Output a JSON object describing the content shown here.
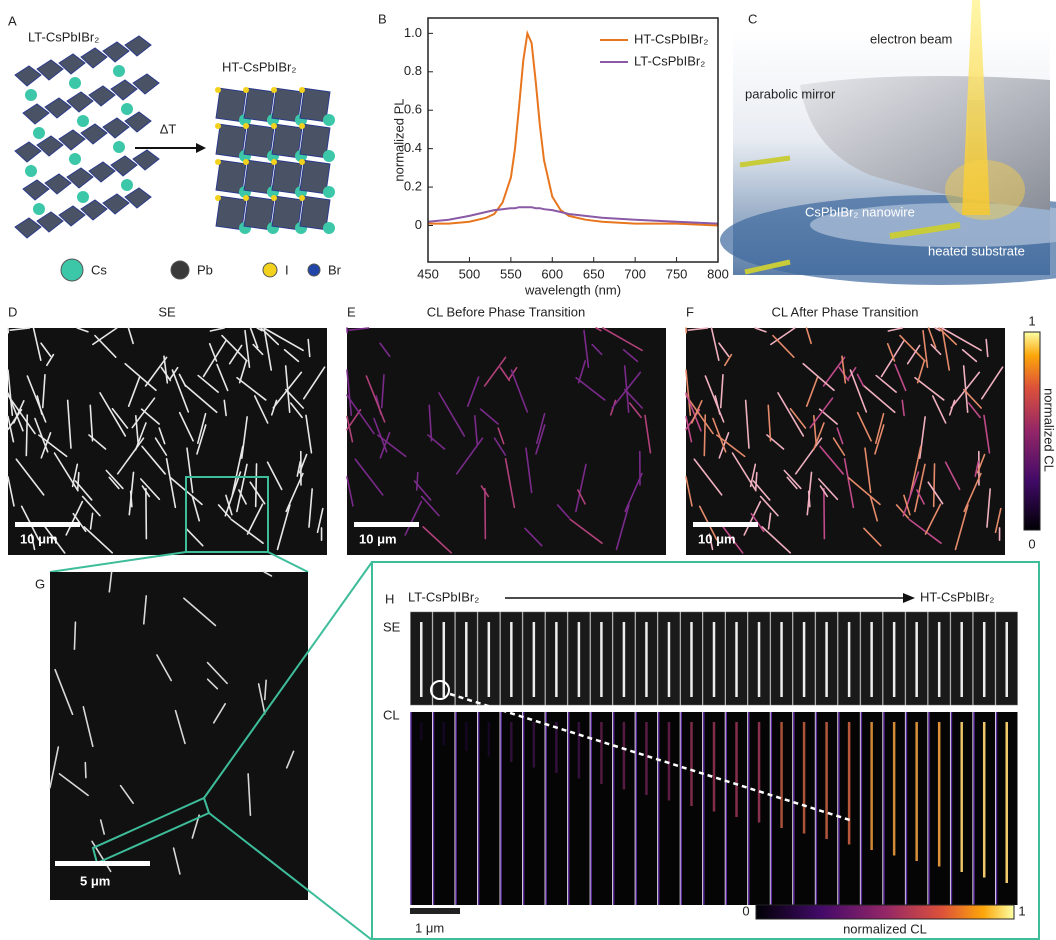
{
  "chart_data": {
    "type": "line",
    "panel_label": "B",
    "xlabel": "wavelength (nm)",
    "ylabel": "normalized PL",
    "x": [
      450,
      475,
      500,
      520,
      530,
      540,
      550,
      555,
      560,
      565,
      570,
      575,
      580,
      585,
      590,
      600,
      610,
      620,
      640,
      660,
      700,
      750,
      800
    ],
    "series": [
      {
        "name": "HT-CsPbIBr₂",
        "color": "#e8761e",
        "values": [
          0.01,
          0.01,
          0.02,
          0.04,
          0.06,
          0.12,
          0.25,
          0.4,
          0.62,
          0.86,
          1.0,
          0.95,
          0.75,
          0.52,
          0.34,
          0.15,
          0.08,
          0.05,
          0.03,
          0.02,
          0.01,
          0.01,
          0.0
        ]
      },
      {
        "name": "LT-CsPbIBr₂",
        "color": "#8a5aa6",
        "values": [
          0.02,
          0.03,
          0.05,
          0.07,
          0.08,
          0.085,
          0.09,
          0.09,
          0.095,
          0.095,
          0.095,
          0.095,
          0.09,
          0.09,
          0.085,
          0.08,
          0.07,
          0.06,
          0.05,
          0.04,
          0.03,
          0.02,
          0.01
        ]
      }
    ],
    "xlim": [
      450,
      800
    ],
    "xticks": [
      450,
      500,
      550,
      600,
      650,
      700,
      750,
      800
    ],
    "ylim": [
      -0.19,
      1.08
    ],
    "yticks": [
      0,
      0.2,
      0.4,
      0.6,
      0.8,
      {
        "value": 1,
        "label": "1.0"
      }
    ],
    "legend": "upper right"
  },
  "panels": {
    "a": {
      "label": "A",
      "low": "LT-CsPbIBr₂",
      "high": "HT-CsPbIBr₂",
      "arrow": "ΔT",
      "atoms": [
        "Cs",
        "Pb",
        "I",
        "Br"
      ]
    },
    "c": {
      "label": "C",
      "beam": "electron beam",
      "mirror": "parabolic mirror",
      "wire": "CsPbIBr₂ nanowire",
      "substrate": "heated substrate"
    },
    "d": {
      "label": "D",
      "title": "SE",
      "scale": "10 μm"
    },
    "e": {
      "label": "E",
      "title": "CL Before Phase Transition",
      "scale": "10 μm"
    },
    "f": {
      "label": "F",
      "title": "CL After Phase Transition",
      "scale": "10 μm",
      "cmax": "1",
      "cmin": "0",
      "cbar": "normalized CL"
    },
    "g": {
      "label": "G",
      "scale": "5 μm"
    },
    "h": {
      "label": "H",
      "start": "LT-CsPbIBr₂",
      "end": "HT-CsPbIBr₂",
      "se": "SE",
      "cl": "CL",
      "scale": "1 μm",
      "cmin": "0",
      "cmax": "1",
      "cbar": "normalized CL"
    }
  }
}
